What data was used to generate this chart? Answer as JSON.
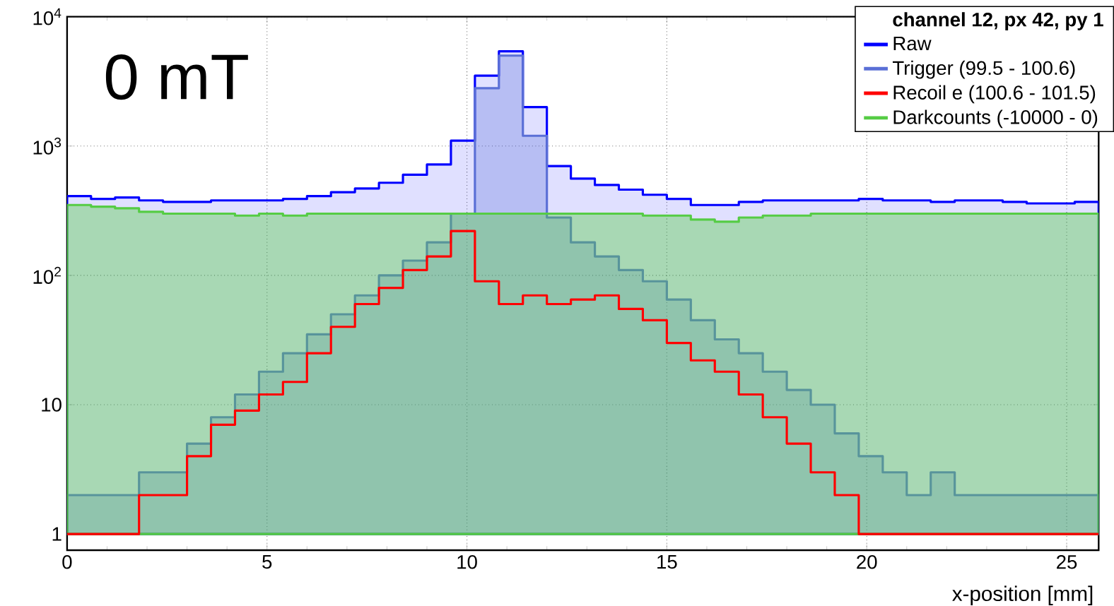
{
  "chart_data": {
    "type": "histogram",
    "xlabel": "x-position  [mm]",
    "legend_title": "channel 12, px 42, py 1",
    "annotations": [
      "0 mT"
    ],
    "bins": [
      0,
      0.6,
      1.2,
      1.8,
      2.4,
      3.0,
      3.6,
      4.2,
      4.8,
      5.4,
      6.0,
      6.6,
      7.2,
      7.8,
      8.4,
      9.0,
      9.6,
      10.2,
      10.8,
      11.4,
      12.0,
      12.6,
      13.2,
      13.8,
      14.4,
      15.0,
      15.6,
      16.2,
      16.8,
      17.4,
      18.0,
      18.6,
      19.2,
      19.8,
      20.4,
      21.0,
      21.6,
      22.2,
      22.8,
      23.4,
      24.0,
      24.6,
      25.2,
      25.8
    ],
    "series": [
      {
        "name": "Raw",
        "color": "#0000ff",
        "values": [
          410,
          390,
          400,
          380,
          370,
          370,
          380,
          380,
          380,
          390,
          410,
          440,
          470,
          520,
          600,
          720,
          1100,
          3500,
          5400,
          2000,
          700,
          560,
          500,
          460,
          420,
          390,
          350,
          350,
          370,
          380,
          380,
          380,
          380,
          390,
          380,
          380,
          370,
          380,
          380,
          370,
          360,
          360,
          370
        ]
      },
      {
        "name": "Trigger (99.5 - 100.6)",
        "color": "#5a6fd6",
        "values": [
          2,
          2,
          2,
          3,
          3,
          5,
          8,
          12,
          18,
          25,
          35,
          50,
          70,
          100,
          130,
          180,
          300,
          2800,
          5000,
          1200,
          280,
          180,
          140,
          110,
          90,
          65,
          45,
          32,
          25,
          18,
          13,
          10,
          6,
          4,
          3,
          2,
          3,
          2,
          2,
          2,
          2,
          2,
          2
        ]
      },
      {
        "name": "Recoil e (100.6 - 101.5)",
        "color": "#ff0000",
        "values": [
          1,
          1,
          1,
          2,
          2,
          4,
          7,
          9,
          12,
          15,
          25,
          40,
          60,
          80,
          110,
          140,
          220,
          90,
          60,
          70,
          60,
          65,
          70,
          55,
          45,
          30,
          22,
          18,
          12,
          8,
          5,
          3,
          2,
          1,
          1,
          1,
          1,
          1,
          1,
          1,
          1,
          1,
          1
        ]
      },
      {
        "name": "Darkcounts (-10000 - 0)",
        "color": "#55cc44",
        "values": [
          350,
          340,
          330,
          310,
          300,
          300,
          300,
          290,
          300,
          290,
          300,
          300,
          300,
          300,
          300,
          300,
          300,
          300,
          300,
          300,
          300,
          300,
          300,
          300,
          290,
          290,
          270,
          260,
          280,
          290,
          290,
          300,
          300,
          300,
          300,
          300,
          300,
          300,
          300,
          300,
          300,
          300,
          300
        ]
      }
    ],
    "xlim": [
      0,
      25.8
    ],
    "ylim": [
      0.75,
      10000
    ],
    "xticks": [
      0,
      5,
      10,
      15,
      20,
      25
    ],
    "yticks": [
      1,
      10,
      {
        "value": 100,
        "label": "10$^{2}$"
      },
      {
        "value": 1000,
        "label": "10$^{3}$"
      },
      {
        "value": 10000,
        "label": "10$^{4}$"
      }
    ],
    "log": "y",
    "grid": true,
    "legend": "top right"
  }
}
